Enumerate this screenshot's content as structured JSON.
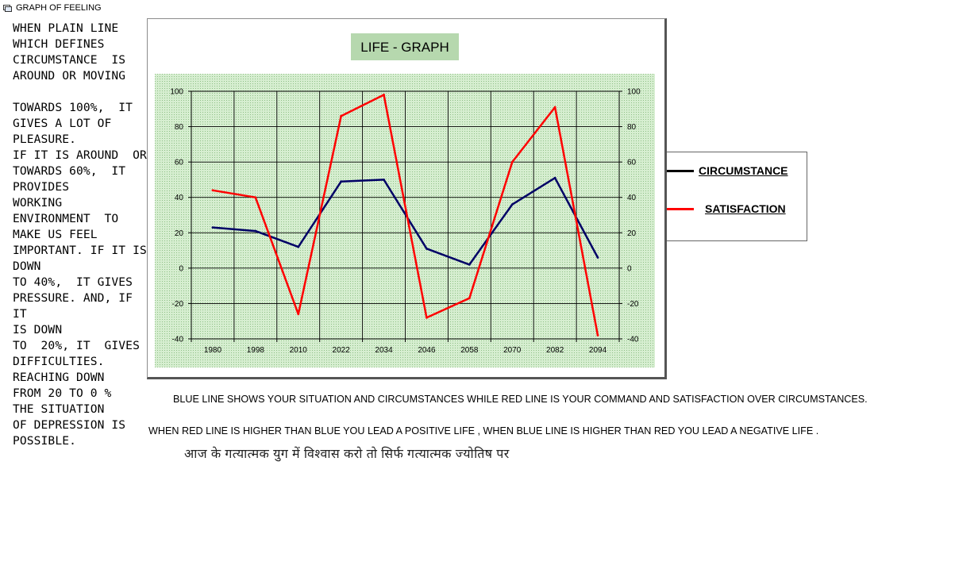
{
  "window": {
    "title": "GRAPH OF FEELING",
    "icon": "window-icon"
  },
  "left_text": "WHEN PLAIN LINE\nWHICH DEFINES\nCIRCUMSTANCE  IS\nAROUND OR MOVING\n\nTOWARDS 100%,  IT\nGIVES A LOT OF\nPLEASURE.\nIF IT IS AROUND  OR\nTOWARDS 60%,  IT\nPROVIDES\nWORKING\nENVIRONMENT  TO\nMAKE US FEEL\nIMPORTANT. IF IT IS\nDOWN\nTO 40%,  IT GIVES\nPRESSURE. AND, IF\nIT\nIS DOWN\nTO  20%, IT  GIVES\nDIFFICULTIES.\nREACHING DOWN\nFROM 20 TO 0 %\nTHE SITUATION\nOF DEPRESSION IS\nPOSSIBLE.",
  "chart_data": {
    "type": "line",
    "title": "LIFE - GRAPH",
    "categories": [
      "1980",
      "1998",
      "2010",
      "2022",
      "2034",
      "2046",
      "2058",
      "2070",
      "2082",
      "2094"
    ],
    "series": [
      {
        "name": "CIRCUMSTANCE",
        "color": "#000066",
        "values": [
          23,
          21,
          12,
          49,
          50,
          11,
          2,
          36,
          51,
          6
        ]
      },
      {
        "name": "SATISFACTION",
        "color": "#ff0000",
        "values": [
          44,
          40,
          -26,
          86,
          98,
          -28,
          -17,
          60,
          91,
          -38
        ]
      }
    ],
    "ylim": [
      -40,
      100
    ],
    "y_ticks": [
      100,
      80,
      60,
      40,
      20,
      0,
      -20,
      -40
    ],
    "secondary_y_axis": true,
    "grid": true,
    "legend": "right",
    "plot_background": "#c6e4c0",
    "title_background": "#b6d8ae"
  },
  "notes": {
    "line1": "BLUE  LINE SHOWS YOUR SITUATION AND CIRCUMSTANCES WHILE  RED LINE IS YOUR COMMAND AND SATISFACTION OVER CIRCUMSTANCES.",
    "line2": "WHEN RED LINE IS HIGHER THAN BLUE  YOU  LEAD A  POSITIVE LIFE , WHEN BLUE LINE IS HIGHER THAN RED YOU  LEAD A  NEGATIVE LIFE ."
  },
  "hindi_text": "आज के गत्यात्मक युग में विश्वास करो तो सिर्फ गत्यात्मक ज्योतिष पर"
}
